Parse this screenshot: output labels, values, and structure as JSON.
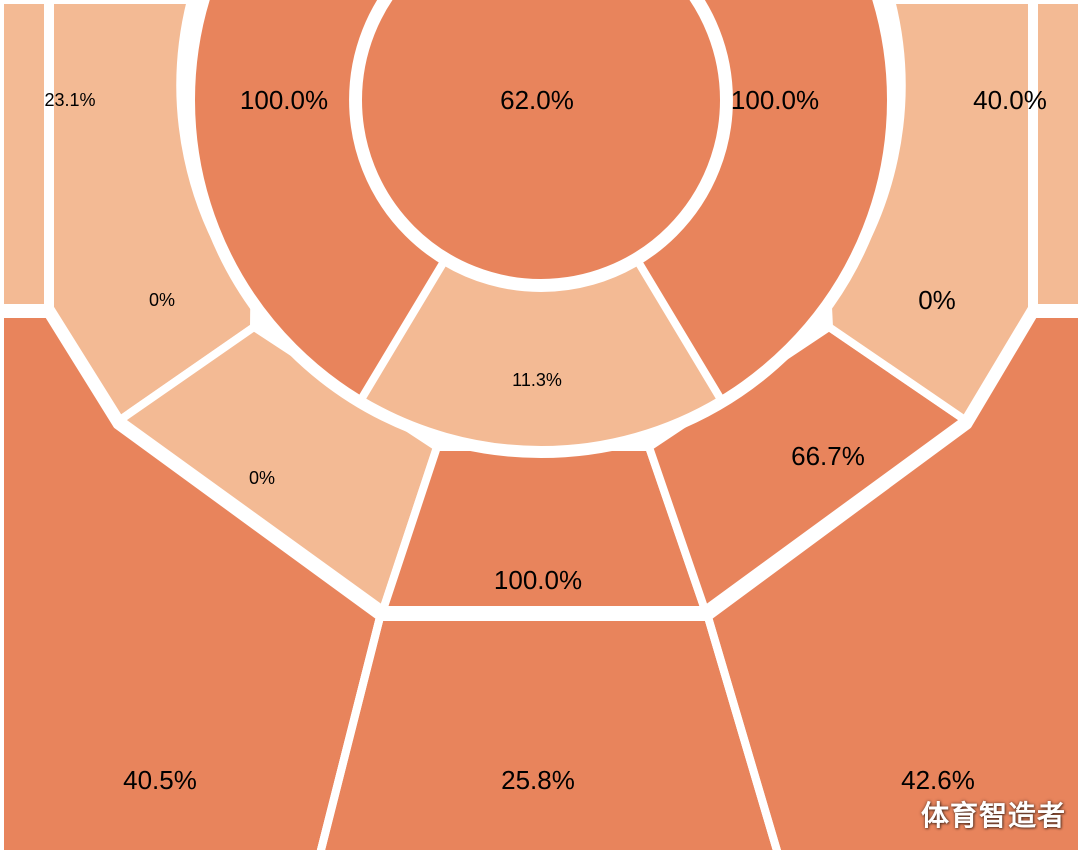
{
  "chart_data": {
    "type": "shot-zone heatmap",
    "colors": {
      "hot": "#E8845C",
      "cold": "#F3BA94",
      "divider": "#FFFFFF",
      "text": "#000000"
    },
    "zones": [
      {
        "id": "restricted-area",
        "value": "62.0%",
        "level": "hot"
      },
      {
        "id": "paint-left",
        "value": "100.0%",
        "level": "hot"
      },
      {
        "id": "paint-right",
        "value": "100.0%",
        "level": "hot"
      },
      {
        "id": "paint-top",
        "value": "11.3%",
        "level": "cold"
      },
      {
        "id": "midrange-left-baseline",
        "value": "0%",
        "level": "cold"
      },
      {
        "id": "midrange-left-wing",
        "value": "0%",
        "level": "cold"
      },
      {
        "id": "midrange-top",
        "value": "100.0%",
        "level": "hot"
      },
      {
        "id": "midrange-right-wing",
        "value": "66.7%",
        "level": "hot"
      },
      {
        "id": "midrange-right-baseline",
        "value": "0%",
        "level": "cold"
      },
      {
        "id": "corner-three-left",
        "value": "23.1%",
        "level": "cold"
      },
      {
        "id": "corner-three-right",
        "value": "40.0%",
        "level": "cold"
      },
      {
        "id": "three-left-wing",
        "value": "40.5%",
        "level": "hot"
      },
      {
        "id": "three-top",
        "value": "25.8%",
        "level": "hot"
      },
      {
        "id": "three-right-wing",
        "value": "42.6%",
        "level": "hot"
      }
    ]
  },
  "watermark": "体育智造者"
}
